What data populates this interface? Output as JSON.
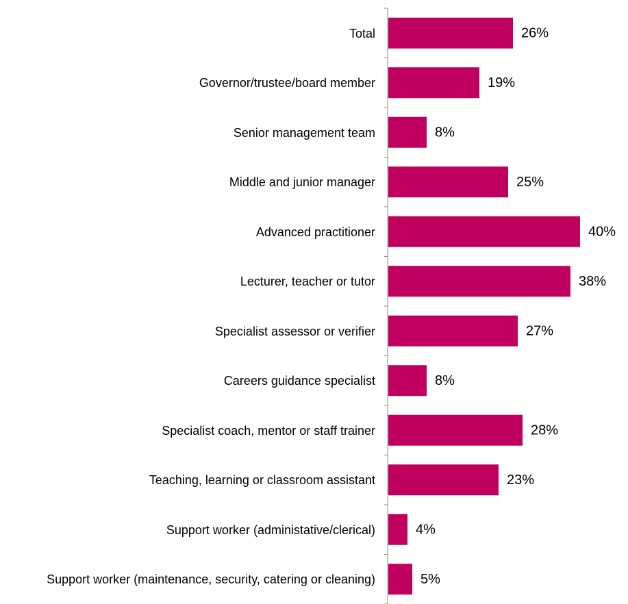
{
  "chart_data": {
    "type": "bar",
    "orientation": "horizontal",
    "categories": [
      "Total",
      "Governor/trustee/board member",
      "Senior management team",
      "Middle and junior manager",
      "Advanced practitioner",
      "Lecturer, teacher or tutor",
      "Specialist assessor or verifier",
      "Careers guidance specialist",
      "Specialist coach, mentor or staff trainer",
      "Teaching, learning or classroom assistant",
      "Support worker (administative/clerical)",
      "Support worker (maintenance, security, catering or cleaning)"
    ],
    "values": [
      26,
      19,
      8,
      25,
      40,
      38,
      27,
      8,
      28,
      23,
      4,
      5
    ],
    "value_labels": [
      "26%",
      "19%",
      "8%",
      "25%",
      "40%",
      "38%",
      "27%",
      "8%",
      "28%",
      "23%",
      "4%",
      "5%"
    ],
    "color": "#c0005f"
  }
}
